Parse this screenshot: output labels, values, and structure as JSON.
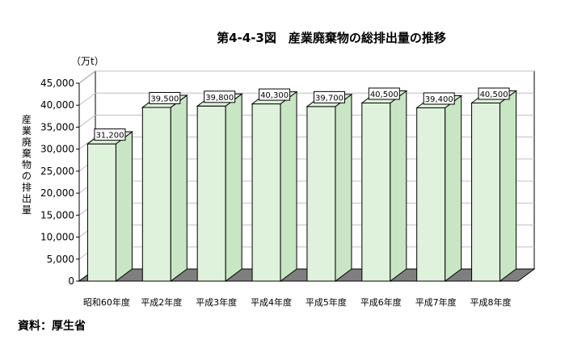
{
  "chart_data": {
    "type": "bar",
    "title": "第4-4-3図　産業廃棄物の総排出量の推移",
    "unit": "（万t）",
    "ylabel": "産業廃棄物の排出量",
    "categories": [
      "昭和60年度",
      "平成2年度",
      "平成3年度",
      "平成4年度",
      "平成5年度",
      "平成6年度",
      "平成7年度",
      "平成8年度"
    ],
    "values": [
      31200,
      39500,
      39800,
      40300,
      39700,
      40500,
      39400,
      40500
    ],
    "value_labels": [
      "31,200",
      "39,500",
      "39,800",
      "40,300",
      "39,700",
      "40,500",
      "39,400",
      "40,500"
    ],
    "ylim": [
      0,
      45000
    ],
    "yticks": [
      "0",
      "5,000",
      "10,000",
      "15,000",
      "20,000",
      "25,000",
      "30,000",
      "35,000",
      "40,000",
      "45,000"
    ],
    "grid": true,
    "style": "3d",
    "colors": {
      "bar_front": "#dff2dc",
      "bar_side": "#c8e6c4",
      "floor": "#7f7f7f",
      "grid": "#c0c0c0"
    }
  },
  "source": "資料：厚生省"
}
